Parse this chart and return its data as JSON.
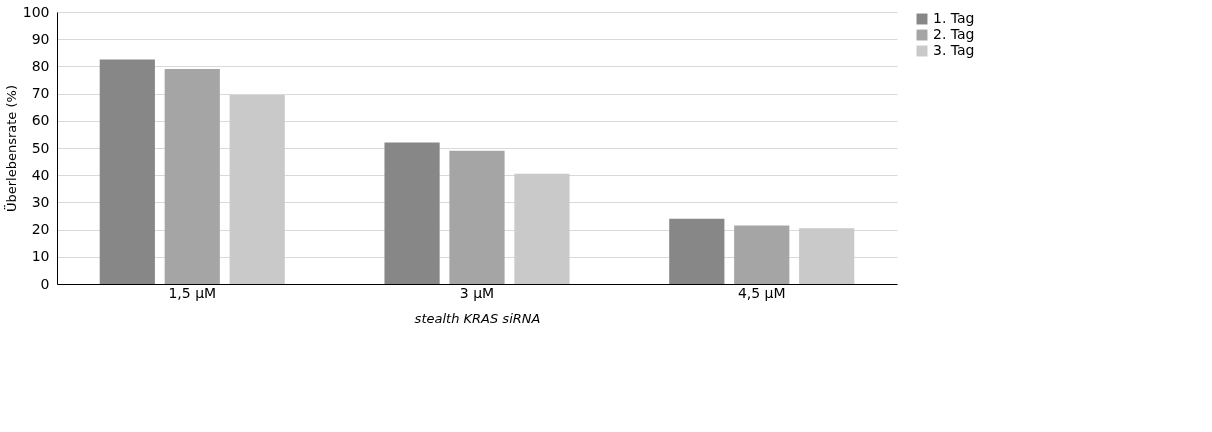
{
  "chart_data": {
    "type": "bar",
    "ylabel": "Überlebensrate (%)",
    "xlabel": "stealth KRAS siRNA",
    "categories": [
      "1,5 µM",
      "3 µM",
      "4,5 µM"
    ],
    "series": [
      {
        "name": "1. Tag",
        "color": "#878787",
        "values": [
          82.5,
          52,
          24
        ]
      },
      {
        "name": "2. Tag",
        "color": "#a5a5a5",
        "values": [
          79,
          49,
          21.5
        ]
      },
      {
        "name": "3. Tag",
        "color": "#c9c9c9",
        "values": [
          69.5,
          40.5,
          20.5
        ]
      }
    ],
    "ylim": [
      0,
      100
    ],
    "yticks": [
      0,
      10,
      20,
      30,
      40,
      50,
      60,
      70,
      80,
      90,
      100
    ],
    "grid": "y",
    "legend": "right"
  }
}
